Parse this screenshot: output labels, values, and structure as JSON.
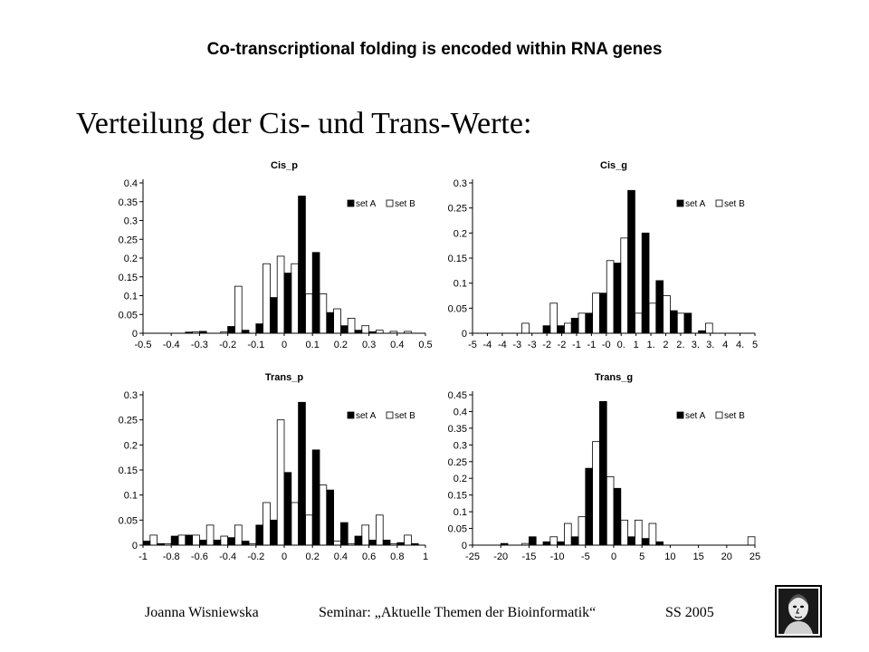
{
  "slide": {
    "header": "Co-transcriptional folding is encoded within RNA genes",
    "heading": "Verteilung der Cis- und Trans-Werte:"
  },
  "footer": {
    "author": "Joanna Wisniewska",
    "seminar": "Seminar: „Aktuelle Themen der Bioinformatik“",
    "term": "SS 2005"
  },
  "chart_data": [
    {
      "type": "bar",
      "title": "Cis_p",
      "xlabel": "",
      "ylabel": "",
      "x_tick_labels": [
        "-0.5",
        "-0.4",
        "-0.3",
        "-0.2",
        "-0.1",
        "0",
        "0.1",
        "0.2",
        "0.3",
        "0.4",
        "0.5"
      ],
      "ylim": [
        0,
        0.4
      ],
      "y_ticks": [
        0,
        0.05,
        0.1,
        0.15,
        0.2,
        0.25,
        0.3,
        0.35,
        0.4
      ],
      "y_tick_labels": [
        "0",
        "0.05",
        "0.1",
        "0.15",
        "0.2",
        "0.25",
        "0.3",
        "0.35",
        "0.4"
      ],
      "grid": false,
      "legend": [
        "set A",
        "set B"
      ],
      "legend_position": "top-right",
      "bins": 20,
      "series": [
        {
          "name": "set A",
          "color": "#000000",
          "values": [
            0,
            0,
            0,
            0.003,
            0.005,
            0,
            0.018,
            0.008,
            0.025,
            0.095,
            0.16,
            0.365,
            0.215,
            0.055,
            0.02,
            0.008,
            0.004,
            0,
            0,
            0
          ]
        },
        {
          "name": "set B",
          "color": "#ffffff",
          "values": [
            0,
            0,
            0,
            0.004,
            0,
            0.004,
            0.125,
            0,
            0.185,
            0.205,
            0.185,
            0.105,
            0.105,
            0.065,
            0.04,
            0.02,
            0.008,
            0.005,
            0.005,
            0
          ]
        }
      ]
    },
    {
      "type": "bar",
      "title": "Cis_g",
      "xlabel": "",
      "ylabel": "",
      "x_tick_labels": [
        "-5",
        "-4",
        "-4",
        "-3",
        "-3",
        "-2",
        "-2",
        "-1",
        "-1",
        "-0",
        "0.",
        "1",
        "1.",
        "2",
        "2.",
        "3.",
        "3.",
        "4",
        "4.",
        "5"
      ],
      "ylim": [
        0,
        0.3
      ],
      "y_ticks": [
        0,
        0.05,
        0.1,
        0.15,
        0.2,
        0.25,
        0.3
      ],
      "y_tick_labels": [
        "0",
        "0.05",
        "0.1",
        "0.15",
        "0.2",
        "0.25",
        "0.3"
      ],
      "grid": false,
      "legend": [
        "set A",
        "set B"
      ],
      "legend_position": "top-right",
      "bins": 20,
      "series": [
        {
          "name": "set A",
          "color": "#000000",
          "values": [
            0,
            0,
            0,
            0,
            0,
            0.015,
            0.015,
            0.03,
            0.04,
            0.08,
            0.14,
            0.285,
            0.2,
            0.105,
            0.045,
            0.04,
            0.005,
            0,
            0,
            0
          ]
        },
        {
          "name": "set B",
          "color": "#ffffff",
          "values": [
            0,
            0,
            0,
            0.02,
            0,
            0.06,
            0.02,
            0.04,
            0.08,
            0.145,
            0.19,
            0.04,
            0.06,
            0.075,
            0.04,
            0,
            0.02,
            0,
            0,
            0
          ]
        }
      ]
    },
    {
      "type": "bar",
      "title": "Trans_p",
      "xlabel": "",
      "ylabel": "",
      "x_tick_labels": [
        "-1",
        "-0.8",
        "-0.6",
        "-0.4",
        "-0.2",
        "0",
        "0.2",
        "0.4",
        "0.6",
        "0.8",
        "1"
      ],
      "ylim": [
        0,
        0.3
      ],
      "y_ticks": [
        0,
        0.05,
        0.1,
        0.15,
        0.2,
        0.25,
        0.3
      ],
      "y_tick_labels": [
        "0",
        "0.05",
        "0.1",
        "0.15",
        "0.2",
        "0.25",
        "0.3"
      ],
      "grid": false,
      "legend": [
        "set A",
        "set B"
      ],
      "legend_position": "top-right",
      "bins": 20,
      "series": [
        {
          "name": "set A",
          "color": "#000000",
          "values": [
            0.008,
            0.003,
            0.018,
            0.02,
            0.01,
            0.01,
            0.015,
            0.008,
            0.04,
            0.05,
            0.145,
            0.285,
            0.19,
            0.11,
            0.045,
            0.018,
            0.01,
            0.01,
            0.005,
            0.003
          ]
        },
        {
          "name": "set B",
          "color": "#ffffff",
          "values": [
            0.02,
            0.003,
            0.02,
            0.02,
            0.04,
            0.018,
            0.04,
            0.003,
            0.085,
            0.25,
            0.085,
            0.06,
            0.12,
            0.008,
            0.003,
            0.04,
            0.06,
            0.003,
            0.02,
            0
          ]
        }
      ]
    },
    {
      "type": "bar",
      "title": "Trans_g",
      "xlabel": "",
      "ylabel": "",
      "x_tick_labels": [
        "-25",
        "-20",
        "-15",
        "-10",
        "-5",
        "0",
        "5",
        "10",
        "15",
        "20",
        "25"
      ],
      "ylim": [
        0,
        0.45
      ],
      "y_ticks": [
        0,
        0.05,
        0.1,
        0.15,
        0.2,
        0.25,
        0.3,
        0.35,
        0.4,
        0.45
      ],
      "y_tick_labels": [
        "0",
        "0.05",
        "0.1",
        "0.15",
        "0.2",
        "0.25",
        "0.3",
        "0.35",
        "0.4",
        "0.45"
      ],
      "grid": false,
      "legend": [
        "set A",
        "set B"
      ],
      "legend_position": "top-right",
      "bins": 20,
      "series": [
        {
          "name": "set A",
          "color": "#000000",
          "values": [
            0,
            0,
            0.005,
            0,
            0.025,
            0.01,
            0.01,
            0.025,
            0.23,
            0.43,
            0.17,
            0.025,
            0.02,
            0.01,
            0,
            0,
            0,
            0,
            0,
            0
          ]
        },
        {
          "name": "set B",
          "color": "#ffffff",
          "values": [
            0,
            0,
            0,
            0.005,
            0,
            0.025,
            0.065,
            0.085,
            0.31,
            0.205,
            0.075,
            0.075,
            0.065,
            0,
            0,
            0,
            0,
            0,
            0,
            0.025
          ]
        }
      ]
    }
  ]
}
